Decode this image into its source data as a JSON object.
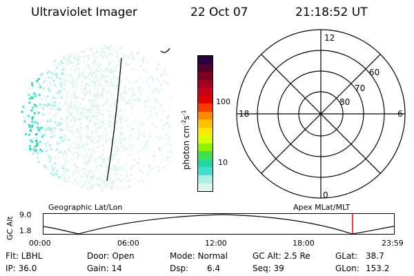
{
  "header": {
    "instrument": "Ultraviolet Imager",
    "date": "22 Oct 07",
    "time": "21:18:52 UT"
  },
  "colorbar": {
    "label": "photon cm",
    "label_sup1": "-2",
    "label_mid": "s",
    "label_sup2": "-1",
    "ticks": [
      "100",
      "10"
    ],
    "colors": [
      "#2b003f",
      "#52002e",
      "#7a0024",
      "#a3001f",
      "#c80018",
      "#e00000",
      "#ff3a00",
      "#ff8a00",
      "#ffc000",
      "#ffe800",
      "#d8ff00",
      "#90f000",
      "#40e050",
      "#20d8a0",
      "#40e0d0",
      "#a8efe8",
      "#dcf4f0"
    ]
  },
  "polar": {
    "mlt_labels": {
      "top": "12",
      "left": "18",
      "right": "6",
      "bottom": "0"
    },
    "lat_labels": [
      "60",
      "70",
      "80"
    ]
  },
  "timeline": {
    "left_label": "Geographic Lat/Lon",
    "right_label": "Apex MLat/MLT",
    "axis_label": "GC Alt",
    "y_max": "9.0",
    "y_min": "1.8",
    "x_ticks": [
      "00:00",
      "06:00",
      "12:00",
      "18:00",
      "23:59"
    ],
    "marker_color": "#e00000"
  },
  "footer": {
    "flt": "Flt: LBHL",
    "ip": "IP: 36.0",
    "door": "Door: Open",
    "gain": "Gain: 14",
    "mode": "Mode: Normal",
    "dsp_label": "Dsp:",
    "dsp_value": "6.4",
    "gc_alt": "GC Alt: 2.5 Re",
    "seq": "Seq: 39",
    "glat_label": "GLat:",
    "glat_value": "38.7",
    "glon_label": "GLon:",
    "glon_value": "153.2"
  }
}
